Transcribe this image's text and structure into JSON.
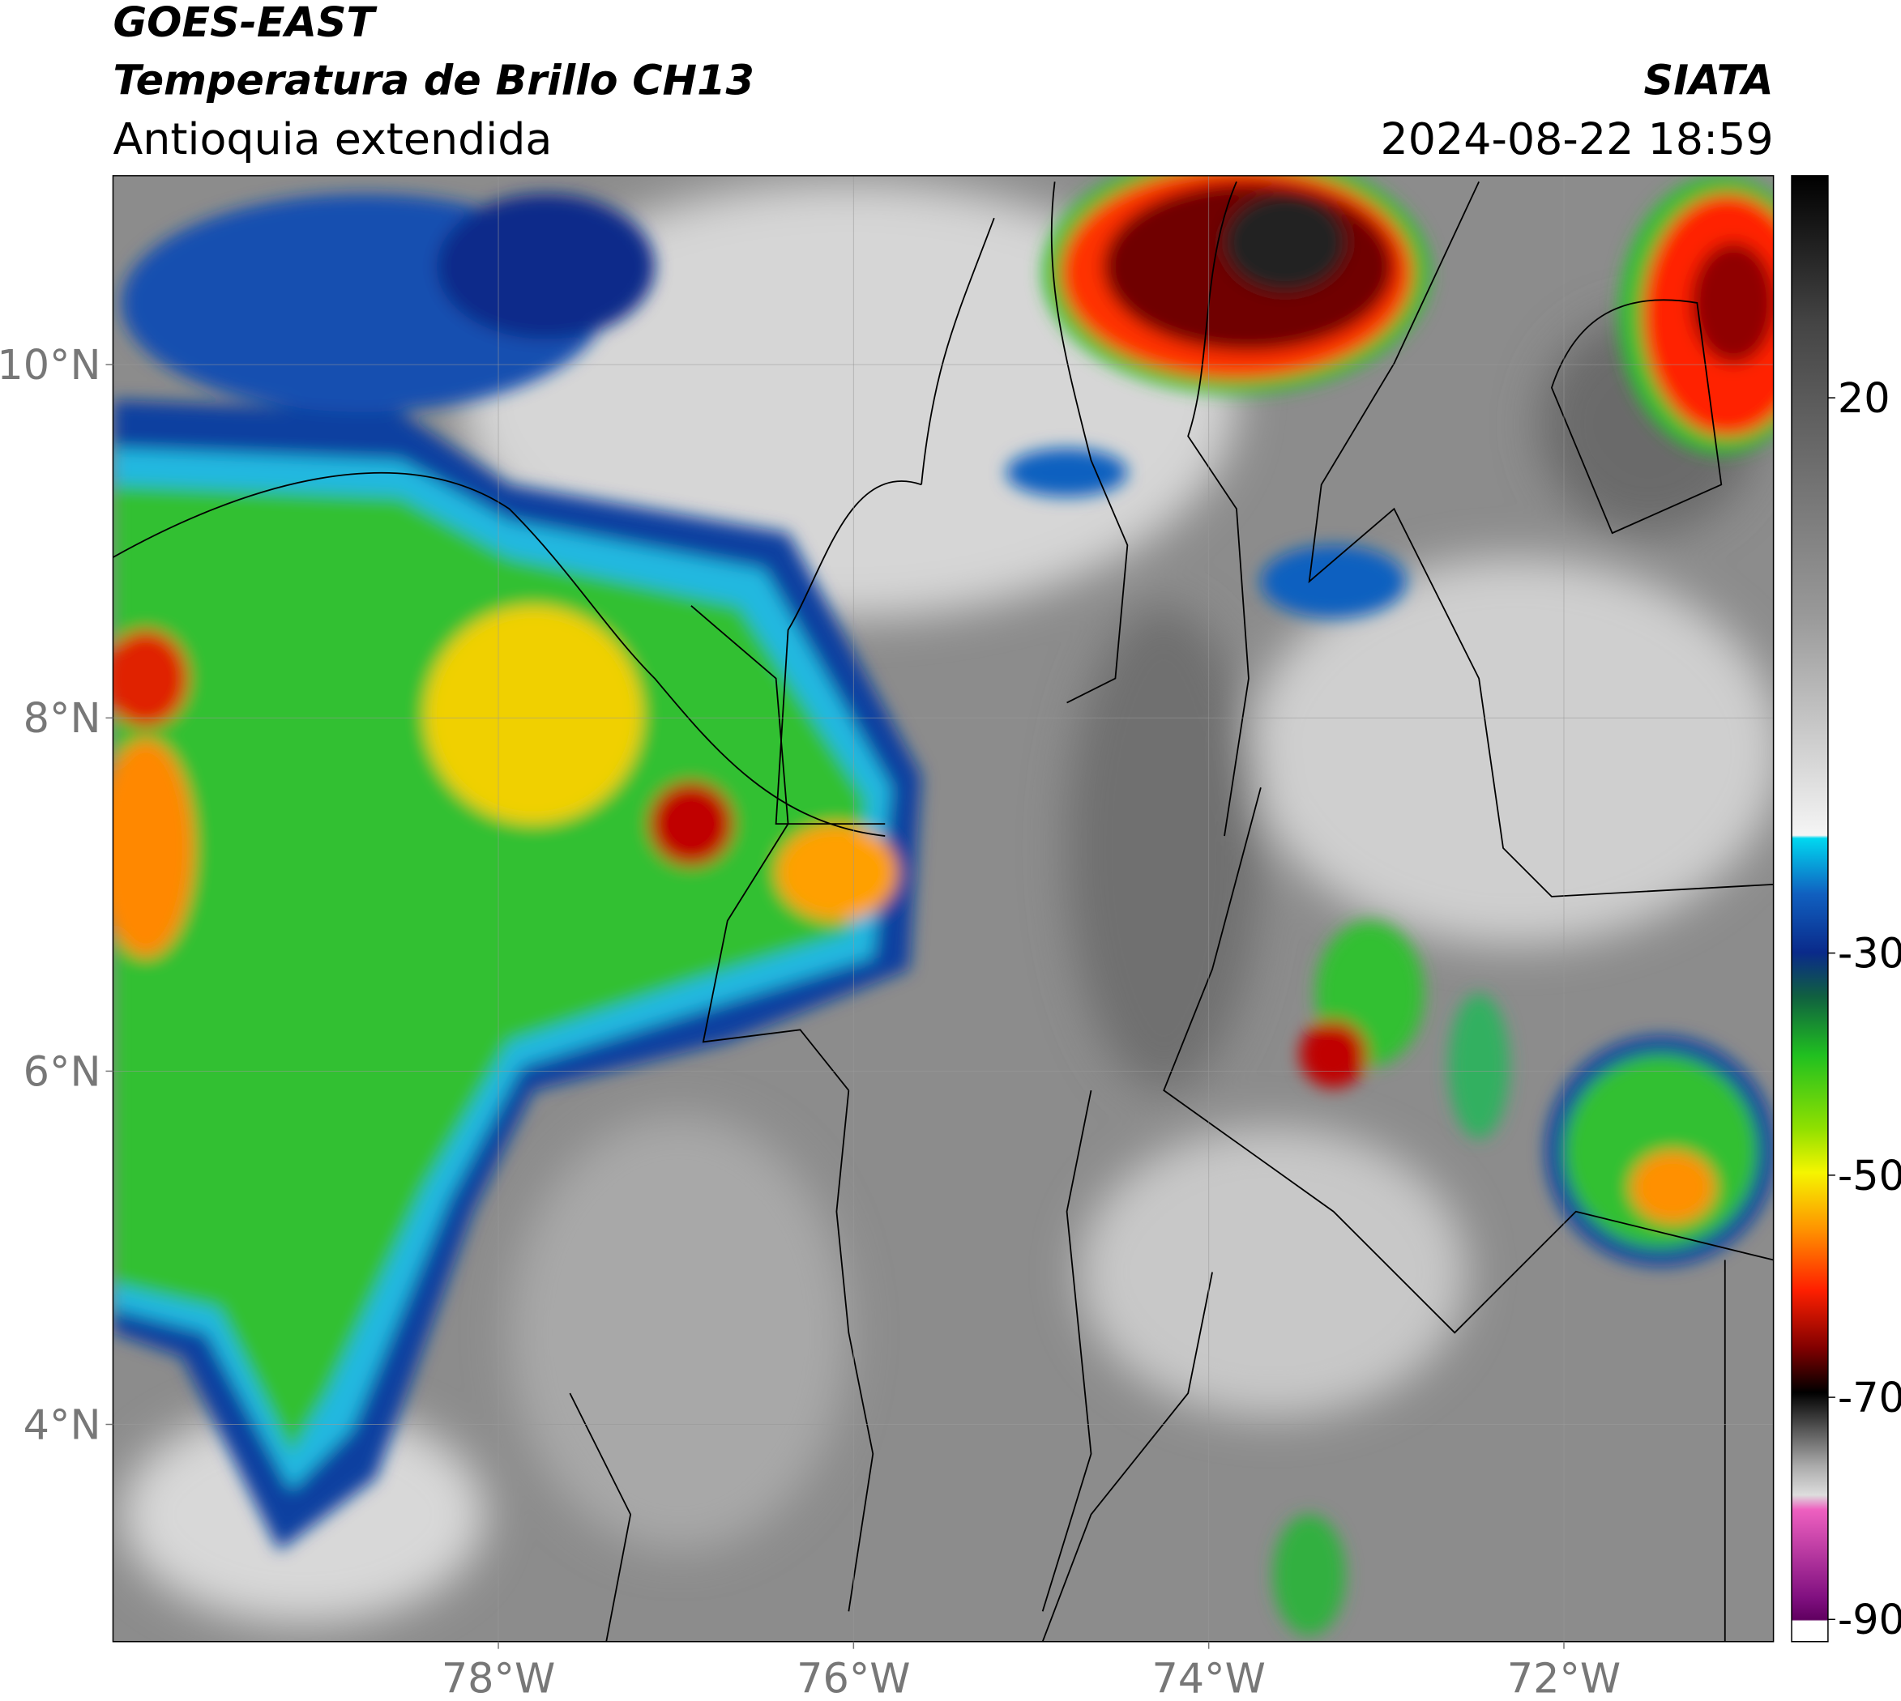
{
  "header": {
    "title": "GOES-EAST",
    "subtitle": "Temperatura de Brillo CH13",
    "region": "Antioquia extendida",
    "source": "SIATA",
    "timestamp": "2024-08-22 18:59"
  },
  "map": {
    "xlim": [
      -80.17,
      -70.82
    ],
    "ylim": [
      2.77,
      11.07
    ],
    "xticks": [
      {
        "value": -78,
        "label": "78°W"
      },
      {
        "value": -76,
        "label": "76°W"
      },
      {
        "value": -74,
        "label": "74°W"
      },
      {
        "value": -72,
        "label": "72°W"
      }
    ],
    "yticks": [
      {
        "value": 4,
        "label": "4°N"
      },
      {
        "value": 6,
        "label": "6°N"
      },
      {
        "value": 8,
        "label": "8°N"
      },
      {
        "value": 10,
        "label": "10°N"
      }
    ],
    "grid": true
  },
  "colorbar": {
    "lim": [
      -92,
      40
    ],
    "ticks": [
      20,
      -30,
      -50,
      -70,
      -90
    ]
  }
}
